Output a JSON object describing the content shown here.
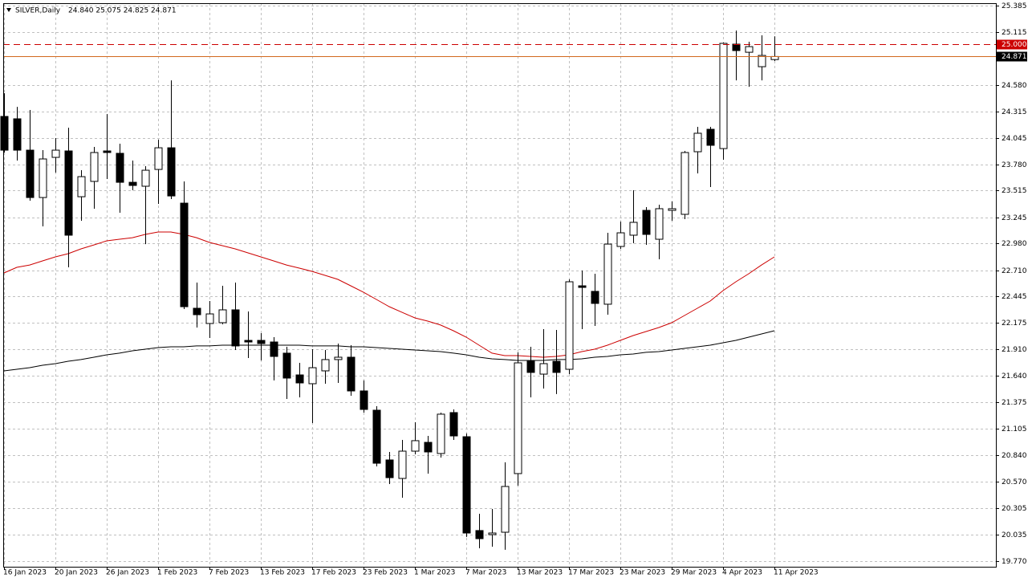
{
  "chart_data": {
    "type": "candlestick",
    "title": "SILVER,Daily",
    "ohlc_label": "24.840 25.075 24.825 24.871",
    "categories": [
      "16 Jan 2023",
      null,
      null,
      null,
      "20 Jan 2023",
      null,
      null,
      null,
      "26 Jan 2023",
      null,
      null,
      null,
      "1 Feb 2023",
      null,
      null,
      null,
      "7 Feb 2023",
      null,
      null,
      null,
      "13 Feb 2023",
      null,
      null,
      null,
      "17 Feb 2023",
      null,
      null,
      null,
      "23 Feb 2023",
      null,
      null,
      null,
      "1 Mar 2023",
      null,
      null,
      null,
      "7 Mar 2023",
      null,
      null,
      null,
      "13 Mar 2023",
      null,
      null,
      null,
      "17 Mar 2023",
      null,
      null,
      null,
      "23 Mar 2023",
      null,
      null,
      null,
      "29 Mar 2023",
      null,
      null,
      null,
      "4 Apr 2023",
      null,
      null,
      null,
      "11 Apr 2023"
    ],
    "open": [
      24.265,
      24.241,
      23.924,
      23.445,
      23.851,
      23.916,
      23.453,
      23.608,
      23.916,
      23.892,
      23.599,
      23.559,
      23.729,
      23.948,
      23.388,
      22.325,
      22.171,
      22.179,
      22.309,
      22.0,
      22.0,
      21.984,
      21.871,
      21.651,
      21.562,
      21.692,
      21.806,
      21.83,
      21.489,
      21.294,
      20.791,
      20.604,
      20.88,
      20.969,
      20.856,
      21.27,
      21.026,
      20.077,
      20.036,
      20.06,
      20.653,
      21.789,
      21.659,
      21.789,
      21.708,
      22.552,
      22.496,
      22.366,
      22.95,
      23.064,
      23.315,
      23.023,
      23.315,
      23.275,
      23.908,
      24.135,
      23.94,
      24.996,
      24.914,
      24.768,
      24.84
    ],
    "high": [
      24.5,
      24.362,
      24.33,
      23.924,
      24.046,
      24.151,
      23.721,
      23.957,
      24.289,
      23.989,
      23.819,
      23.762,
      24.03,
      24.63,
      23.608,
      22.585,
      22.398,
      22.552,
      22.585,
      22.293,
      22.073,
      22.033,
      21.935,
      21.773,
      21.911,
      21.903,
      21.968,
      21.952,
      21.595,
      21.335,
      20.872,
      20.994,
      21.172,
      21.034,
      21.27,
      21.302,
      21.059,
      20.247,
      20.296,
      20.767,
      21.879,
      21.935,
      22.114,
      22.106,
      22.617,
      22.707,
      22.674,
      23.088,
      23.202,
      23.518,
      23.348,
      23.372,
      23.405,
      23.916,
      24.16,
      24.16,
      25.012,
      25.134,
      25.02,
      25.085,
      25.075
    ],
    "low": [
      23.9,
      23.819,
      23.413,
      23.153,
      23.697,
      22.739,
      23.21,
      23.332,
      23.632,
      23.291,
      23.518,
      22.974,
      23.38,
      23.429,
      22.317,
      22.13,
      22.025,
      22.163,
      21.903,
      21.822,
      21.797,
      21.595,
      21.408,
      21.424,
      21.164,
      21.562,
      21.57,
      21.44,
      21.27,
      20.726,
      20.547,
      20.409,
      20.848,
      20.653,
      20.815,
      20.994,
      20.012,
      19.898,
      19.914,
      19.882,
      20.531,
      21.424,
      21.513,
      21.457,
      21.659,
      22.114,
      22.146,
      22.26,
      22.926,
      22.983,
      22.966,
      22.82,
      23.21,
      23.226,
      23.689,
      23.551,
      23.827,
      24.63,
      24.565,
      24.63,
      24.825
    ],
    "close": [
      23.924,
      23.924,
      23.445,
      23.835,
      23.924,
      23.064,
      23.656,
      23.9,
      23.9,
      23.599,
      23.567,
      23.721,
      23.948,
      23.461,
      22.341,
      22.26,
      22.268,
      22.309,
      21.944,
      21.984,
      21.968,
      21.838,
      21.619,
      21.57,
      21.724,
      21.806,
      21.83,
      21.489,
      21.302,
      20.758,
      20.612,
      20.88,
      20.986,
      20.872,
      21.254,
      21.034,
      20.052,
      19.995,
      20.052,
      20.523,
      21.773,
      21.676,
      21.765,
      21.676,
      22.593,
      22.536,
      22.374,
      22.974,
      23.088,
      23.194,
      23.072,
      23.332,
      23.332,
      23.9,
      24.095,
      23.973,
      25.004,
      24.931,
      24.971,
      24.882,
      24.871
    ],
    "up_color": "#ffffff",
    "down_color": "#000000",
    "overlays": [
      {
        "color": "#cc0000",
        "values": [
          22.682,
          22.739,
          22.763,
          22.804,
          22.845,
          22.877,
          22.926,
          22.966,
          23.007,
          23.023,
          23.039,
          23.072,
          23.096,
          23.096,
          23.072,
          23.039,
          22.991,
          22.958,
          22.926,
          22.885,
          22.845,
          22.804,
          22.763,
          22.731,
          22.698,
          22.658,
          22.617,
          22.552,
          22.487,
          22.414,
          22.341,
          22.284,
          22.228,
          22.195,
          22.155,
          22.098,
          22.033,
          21.952,
          21.871,
          21.846,
          21.846,
          21.838,
          21.83,
          21.838,
          21.854,
          21.887,
          21.911,
          21.952,
          22.0,
          22.049,
          22.09,
          22.13,
          22.179,
          22.252,
          22.325,
          22.398,
          22.504,
          22.593,
          22.674,
          22.763,
          22.845
        ]
      },
      {
        "color": "#000000",
        "values": [
          21.692,
          21.708,
          21.724,
          21.749,
          21.765,
          21.789,
          21.806,
          21.83,
          21.854,
          21.871,
          21.895,
          21.911,
          21.927,
          21.935,
          21.935,
          21.944,
          21.944,
          21.952,
          21.952,
          21.952,
          21.952,
          21.952,
          21.952,
          21.952,
          21.944,
          21.944,
          21.944,
          21.935,
          21.935,
          21.927,
          21.919,
          21.911,
          21.903,
          21.895,
          21.887,
          21.871,
          21.854,
          21.83,
          21.814,
          21.806,
          21.797,
          21.797,
          21.797,
          21.806,
          21.806,
          21.814,
          21.83,
          21.838,
          21.854,
          21.862,
          21.879,
          21.887,
          21.903,
          21.919,
          21.935,
          21.952,
          21.976,
          22.0,
          22.033,
          22.065,
          22.098
        ]
      }
    ],
    "levels": [
      {
        "value": 25.0,
        "label": "25.000",
        "color": "#cc0000",
        "dashed": true
      },
      {
        "value": 24.871,
        "label": "24.871",
        "color": "#000000",
        "line_color": "#d2691e",
        "dashed": false
      }
    ],
    "ylim": [
      19.711,
      25.41
    ],
    "yticks": [
      {
        "value": 19.77,
        "label": "19.770"
      },
      {
        "value": 20.035,
        "label": "20.035"
      },
      {
        "value": 20.305,
        "label": "20.305"
      },
      {
        "value": 20.57,
        "label": "20.570"
      },
      {
        "value": 20.84,
        "label": "20.840"
      },
      {
        "value": 21.105,
        "label": "21.105"
      },
      {
        "value": 21.375,
        "label": "21.375"
      },
      {
        "value": 21.64,
        "label": "21.640"
      },
      {
        "value": 21.91,
        "label": "21.910"
      },
      {
        "value": 22.175,
        "label": "22.175"
      },
      {
        "value": 22.445,
        "label": "22.445"
      },
      {
        "value": 22.71,
        "label": "22.710"
      },
      {
        "value": 22.98,
        "label": "22.980"
      },
      {
        "value": 23.245,
        "label": "23.245"
      },
      {
        "value": 23.515,
        "label": "23.515"
      },
      {
        "value": 23.78,
        "label": "23.780"
      },
      {
        "value": 24.045,
        "label": "24.045"
      },
      {
        "value": 24.315,
        "label": "24.315"
      },
      {
        "value": 24.58,
        "label": "24.580"
      },
      {
        "value": 25.115,
        "label": "25.115"
      },
      {
        "value": 25.385,
        "label": "25.385"
      }
    ],
    "grid": true
  }
}
